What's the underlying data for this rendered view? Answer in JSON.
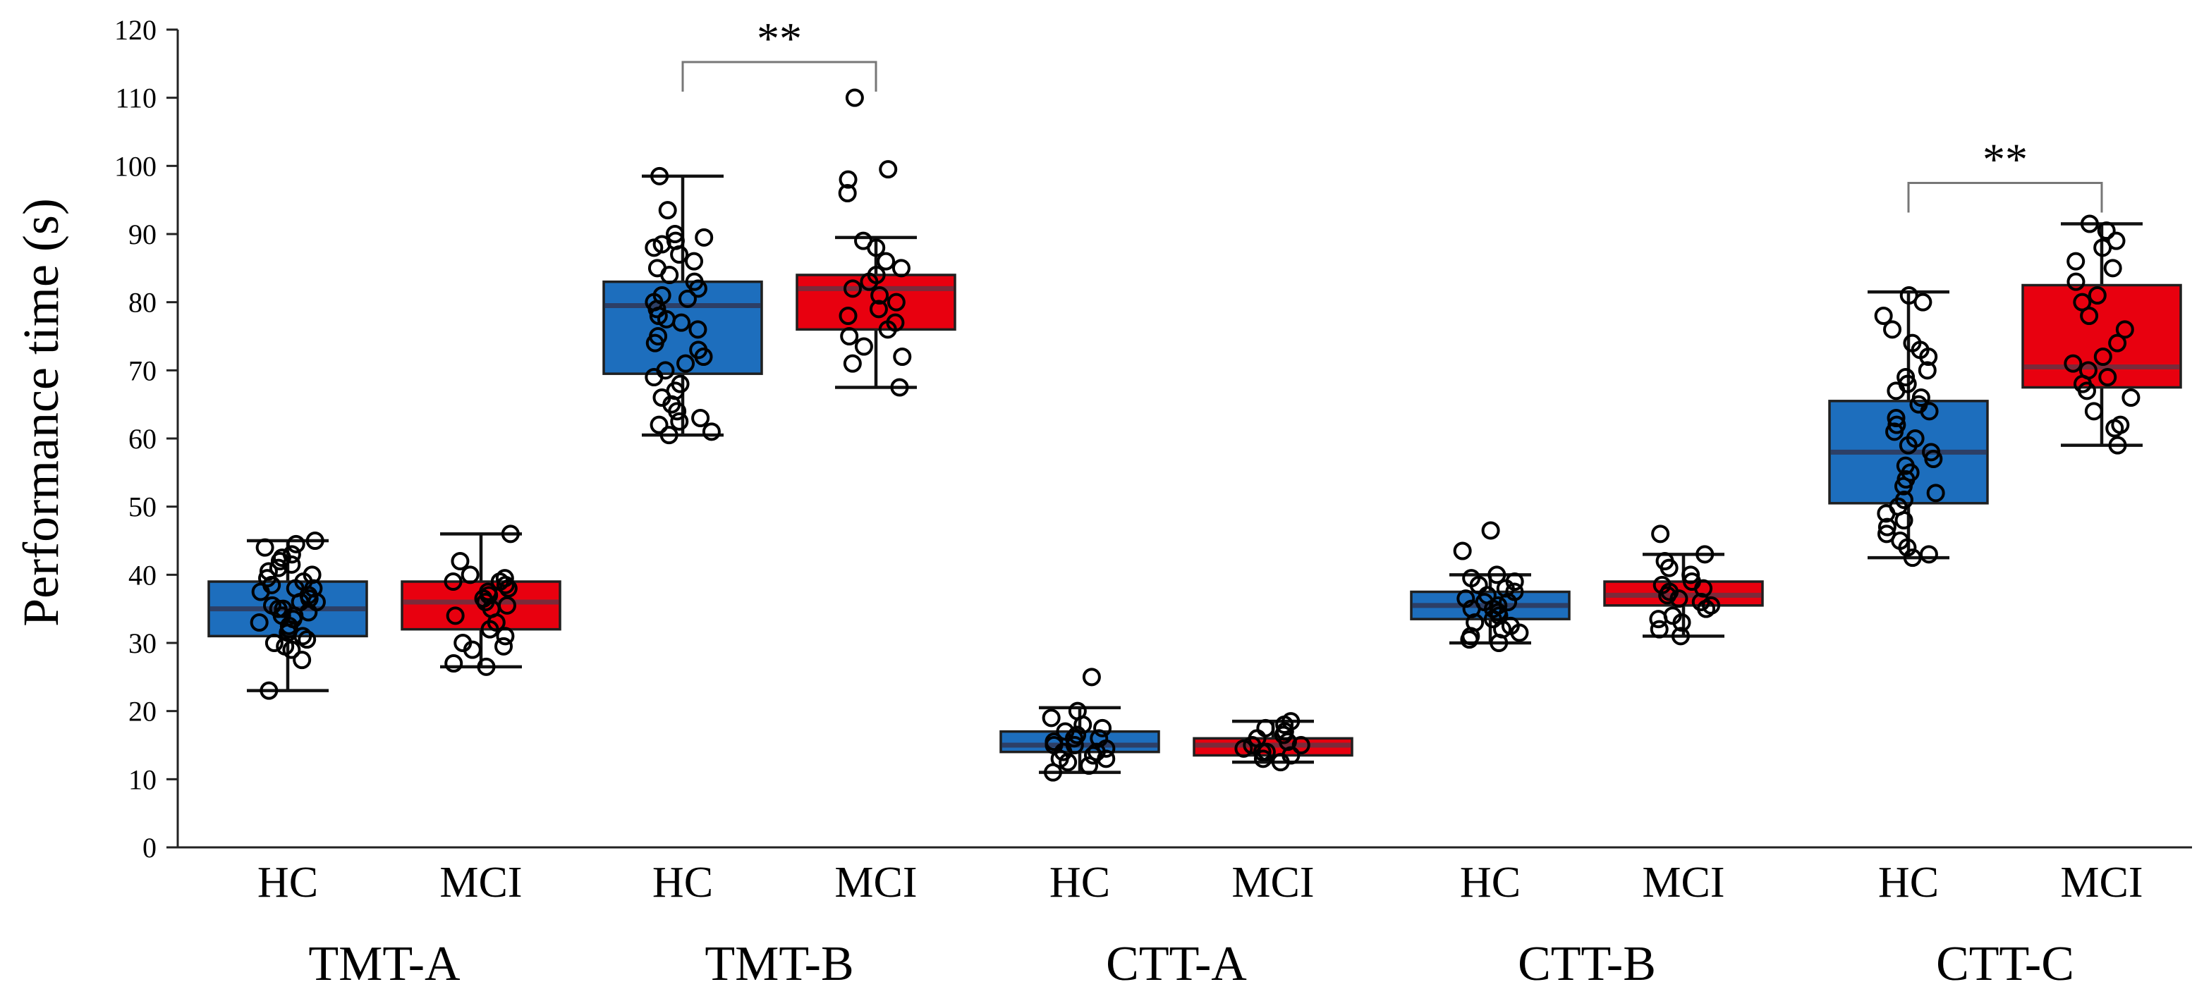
{
  "chart_data": {
    "type": "boxplot",
    "ylabel": "Performance time (s)",
    "ylim": [
      0,
      120
    ],
    "yticks": [
      0,
      10,
      20,
      30,
      40,
      50,
      60,
      70,
      80,
      90,
      100,
      110,
      120
    ],
    "colors": {
      "HC": "#1d6ebd",
      "MCI": "#e8000f",
      "HC_median": "#2d3f66",
      "MCI_median": "#7b2a3a"
    },
    "groups": [
      {
        "name": "TMT-A",
        "boxes": [
          {
            "category": "HC",
            "whisker_low": 23,
            "q1": 31,
            "median": 35,
            "q3": 39,
            "whisker_high": 45,
            "points": [
              23,
              27.5,
              29,
              29.5,
              30,
              30.5,
              31,
              31.5,
              32,
              32.5,
              33,
              33.5,
              34,
              34,
              34.5,
              35,
              35,
              35.5,
              36,
              36,
              36.5,
              37,
              37.5,
              38,
              38,
              38.5,
              39,
              39.5,
              40,
              40.5,
              41,
              41.5,
              42,
              42.5,
              43,
              44,
              44.5,
              45
            ]
          },
          {
            "category": "MCI",
            "whisker_low": 26.5,
            "q1": 32,
            "median": 36,
            "q3": 39,
            "whisker_high": 46,
            "points": [
              26.5,
              27,
              29,
              29.5,
              30,
              31,
              32,
              33,
              34,
              35,
              35.5,
              36,
              36.5,
              37,
              37.5,
              38,
              38.5,
              39,
              39,
              39.5,
              40,
              42,
              46
            ]
          }
        ]
      },
      {
        "name": "TMT-B",
        "boxes": [
          {
            "category": "HC",
            "whisker_low": 60.5,
            "q1": 69.5,
            "median": 79.5,
            "q3": 83,
            "whisker_high": 98.5,
            "points": [
              60.5,
              61,
              62,
              62.5,
              63,
              64,
              65,
              66,
              67,
              68,
              69,
              70,
              71,
              72,
              73,
              74,
              75,
              76,
              77,
              77.5,
              78,
              79,
              80,
              80.5,
              81,
              82,
              83,
              84,
              85,
              86,
              87,
              88,
              88.5,
              89,
              89.5,
              90,
              93.5,
              98.5
            ]
          },
          {
            "category": "MCI",
            "whisker_low": 67.5,
            "q1": 76,
            "median": 82,
            "q3": 84,
            "whisker_high": 89.5,
            "points": [
              67.5,
              71,
              72,
              73.5,
              75,
              76,
              77,
              78,
              79,
              80,
              81,
              82,
              83,
              84,
              85,
              86,
              88,
              89,
              96,
              98,
              99.5,
              110
            ]
          }
        ]
      },
      {
        "name": "CTT-A",
        "boxes": [
          {
            "category": "HC",
            "whisker_low": 11,
            "q1": 14,
            "median": 15,
            "q3": 17,
            "whisker_high": 20.5,
            "points": [
              11,
              12,
              12.5,
              13,
              13,
              13.5,
              14,
              14,
              14.5,
              15,
              15,
              15.5,
              16,
              16,
              16.5,
              17,
              17.5,
              18,
              19,
              20,
              25
            ]
          },
          {
            "category": "MCI",
            "whisker_low": 12.5,
            "q1": 13.5,
            "median": 15,
            "q3": 16,
            "whisker_high": 18.5,
            "points": [
              12.5,
              13,
              13.5,
              14,
              14,
              14.5,
              15,
              15,
              15.5,
              16,
              16.5,
              17,
              17.5,
              18,
              18.5
            ]
          }
        ]
      },
      {
        "name": "CTT-B",
        "boxes": [
          {
            "category": "HC",
            "whisker_low": 30,
            "q1": 33.5,
            "median": 35.5,
            "q3": 37.5,
            "whisker_high": 40,
            "points": [
              30,
              30.5,
              31,
              31.5,
              32,
              32.5,
              33,
              33.5,
              34,
              34.5,
              35,
              35,
              35.5,
              36,
              36,
              36.5,
              37,
              37.5,
              38,
              38.5,
              39,
              39.5,
              40,
              43.5,
              46.5
            ]
          },
          {
            "category": "MCI",
            "whisker_low": 31,
            "q1": 35.5,
            "median": 37,
            "q3": 39,
            "whisker_high": 43,
            "points": [
              31,
              32,
              33,
              33.5,
              34,
              35,
              35.5,
              36,
              36.5,
              37,
              37.5,
              38,
              38.5,
              39,
              40,
              41,
              42,
              43,
              46
            ]
          }
        ]
      },
      {
        "name": "CTT-C",
        "boxes": [
          {
            "category": "HC",
            "whisker_low": 42.5,
            "q1": 50.5,
            "median": 58,
            "q3": 65.5,
            "whisker_high": 81.5,
            "points": [
              42.5,
              43,
              44,
              45,
              46,
              47,
              48,
              49,
              50,
              51,
              52,
              53,
              54,
              55,
              56,
              57,
              58,
              59,
              60,
              61,
              62,
              63,
              64,
              65,
              66,
              67,
              68,
              69,
              70,
              72,
              73,
              74,
              76,
              78,
              80,
              81
            ]
          },
          {
            "category": "MCI",
            "whisker_low": 59,
            "q1": 67.5,
            "median": 70.5,
            "q3": 82.5,
            "whisker_high": 91.5,
            "points": [
              59,
              61.5,
              62,
              64,
              66,
              67,
              68,
              69,
              70,
              71,
              72,
              74,
              76,
              78,
              80,
              81,
              83,
              85,
              86,
              88,
              89,
              90.5,
              91.5
            ]
          }
        ]
      }
    ],
    "annotations": [
      {
        "group": "TMT-B",
        "text": "**"
      },
      {
        "group": "CTT-C",
        "text": "**"
      }
    ]
  }
}
